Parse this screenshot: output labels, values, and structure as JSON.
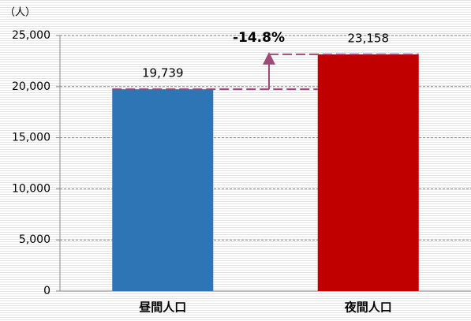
{
  "chart_data": {
    "type": "bar",
    "y_unit_label": "（人）",
    "categories": [
      "昼間人口",
      "夜間人口"
    ],
    "values": [
      19739,
      23158
    ],
    "value_labels": [
      "19,739",
      "23,158"
    ],
    "colors": [
      "#2e75b6",
      "#c00000"
    ],
    "annotation": "-14.8%",
    "ylim": [
      0,
      25000
    ],
    "yticks": [
      0,
      {
        "value": 5000,
        "label": "5,000"
      },
      {
        "value": 10000,
        "label": "10,000"
      },
      {
        "value": 15000,
        "label": "15,000"
      },
      {
        "value": 20000,
        "label": "20,000"
      },
      {
        "value": 25000,
        "label": "25,000"
      }
    ],
    "grid": true
  }
}
